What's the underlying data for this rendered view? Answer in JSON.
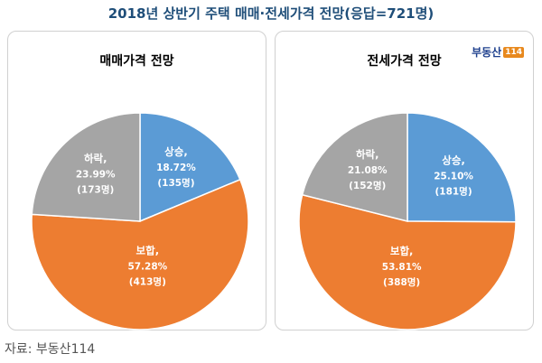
{
  "title": "2018년 상반기 주택 매매·전세가격 전망(응답=721명)",
  "source": "자료: 부동산114",
  "logo": {
    "text": "부동산",
    "num": "114"
  },
  "colors": {
    "up": "#5b9bd5",
    "hold": "#ed7d31",
    "down": "#a5a5a5",
    "title": "#1f4e79"
  },
  "chart_data": [
    {
      "type": "pie",
      "title": "매매가격 전망",
      "categories": [
        "상승",
        "보합",
        "하락"
      ],
      "values": [
        18.72,
        57.28,
        23.99
      ],
      "labels": [
        {
          "name": "상승,",
          "pct": "18.72%",
          "count": "(135명)"
        },
        {
          "name": "보합,",
          "pct": "57.28%",
          "count": "(413명)"
        },
        {
          "name": "하락,",
          "pct": "23.99%",
          "count": "(173명)"
        }
      ]
    },
    {
      "type": "pie",
      "title": "전세가격 전망",
      "categories": [
        "상승",
        "보합",
        "하락"
      ],
      "values": [
        25.1,
        53.81,
        21.08
      ],
      "labels": [
        {
          "name": "상승,",
          "pct": "25.10%",
          "count": "(181명)"
        },
        {
          "name": "보합,",
          "pct": "53.81%",
          "count": "(388명)"
        },
        {
          "name": "하락,",
          "pct": "21.08%",
          "count": "(152명)"
        }
      ]
    }
  ]
}
